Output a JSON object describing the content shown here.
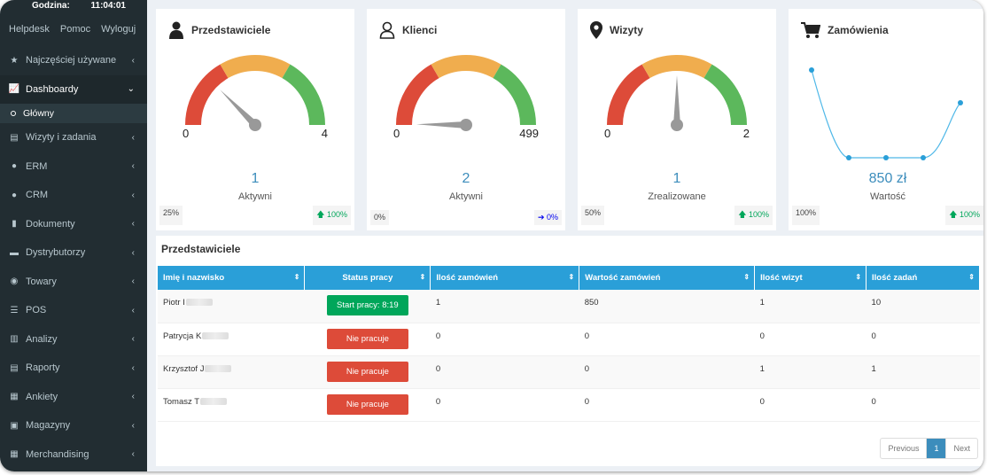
{
  "sidebar": {
    "clock_label": "Godzina:",
    "clock_time": "11:04:01",
    "links": [
      "Helpdesk",
      "Pomoc",
      "Wyloguj"
    ],
    "items": [
      {
        "label": "Najczęściej używane",
        "icon": "star-icon",
        "glyph": "★"
      },
      {
        "label": "Dashboardy",
        "icon": "chart-icon",
        "glyph": "📈"
      },
      {
        "label": "Wizyty i zadania",
        "icon": "document-icon",
        "glyph": "▤"
      },
      {
        "label": "ERM",
        "icon": "user-icon",
        "glyph": "●"
      },
      {
        "label": "CRM",
        "icon": "users-icon",
        "glyph": "●"
      },
      {
        "label": "Dokumenty",
        "icon": "book-icon",
        "glyph": "▮"
      },
      {
        "label": "Dystrybutorzy",
        "icon": "truck-icon",
        "glyph": "▬"
      },
      {
        "label": "Towary",
        "icon": "box-icon",
        "glyph": "◉"
      },
      {
        "label": "POS",
        "icon": "list-icon",
        "glyph": "☰"
      },
      {
        "label": "Analizy",
        "icon": "bar-chart-icon",
        "glyph": "▥"
      },
      {
        "label": "Raporty",
        "icon": "report-icon",
        "glyph": "▤"
      },
      {
        "label": "Ankiety",
        "icon": "survey-icon",
        "glyph": "▦"
      },
      {
        "label": "Magazyny",
        "icon": "warehouse-icon",
        "glyph": "▣"
      },
      {
        "label": "Merchandising",
        "icon": "merch-icon",
        "glyph": "▦"
      }
    ],
    "submenu_label": "Główny"
  },
  "cards": [
    {
      "title": "Przedstawiciele",
      "min": "0",
      "max": "4",
      "value": "1",
      "label": "Aktywni",
      "left_chip": "25%",
      "right_chip": "100%",
      "gauge_fraction": 0.25
    },
    {
      "title": "Klienci",
      "min": "0",
      "max": "499",
      "value": "2",
      "label": "Aktywni",
      "left_chip": "0%",
      "right_chip": "0%",
      "gauge_fraction": 0.004
    },
    {
      "title": "Wizyty",
      "min": "0",
      "max": "2",
      "value": "1",
      "label": "Zrealizowane",
      "left_chip": "50%",
      "right_chip": "100%",
      "gauge_fraction": 0.5
    },
    {
      "title": "Zamówienia",
      "value": "850 zł",
      "label": "Wartość",
      "left_chip": "100%",
      "right_chip": "100%"
    }
  ],
  "gauge_colors": {
    "red": "#dd4b39",
    "orange": "#f0ad4e",
    "green": "#5cb85c"
  },
  "table": {
    "title": "Przedstawiciele",
    "headers": [
      "Imię i nazwisko",
      "Status pracy",
      "Ilość zamówień",
      "Wartość zamówień",
      "Ilość wizyt",
      "Ilość zadań"
    ],
    "rows": [
      {
        "name": "Piotr I",
        "status": "Start pracy: 8:19",
        "status_color": "green",
        "orders": "1",
        "value": "850",
        "visits": "1",
        "tasks": "10"
      },
      {
        "name": "Patrycja K",
        "status": "Nie pracuje",
        "status_color": "red",
        "orders": "0",
        "value": "0",
        "visits": "0",
        "tasks": "0"
      },
      {
        "name": "Krzysztof J",
        "status": "Nie pracuje",
        "status_color": "red",
        "orders": "0",
        "value": "0",
        "visits": "1",
        "tasks": "1"
      },
      {
        "name": "Tomasz T",
        "status": "Nie pracuje",
        "status_color": "red",
        "orders": "0",
        "value": "0",
        "visits": "0",
        "tasks": "0"
      }
    ]
  },
  "pager": {
    "previous": "Previous",
    "current": "1",
    "next": "Next"
  }
}
